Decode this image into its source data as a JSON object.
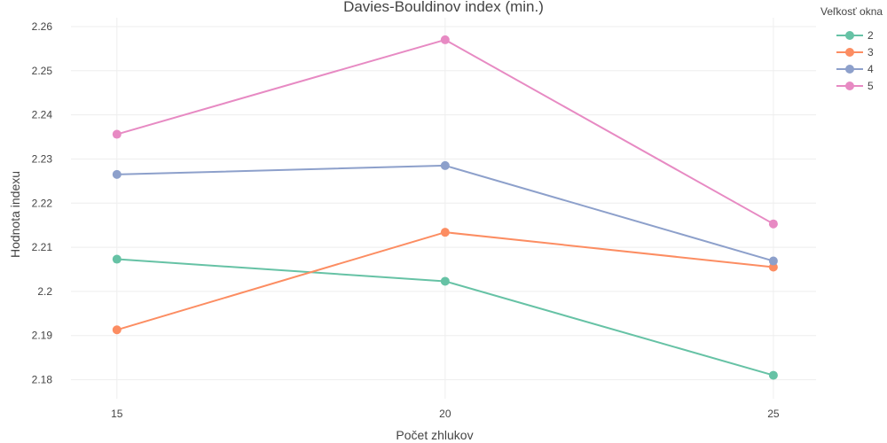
{
  "chart_data": {
    "type": "line",
    "title": "Davies-Bouldinov index (min.)",
    "xlabel": "Počet zhlukov",
    "ylabel": "Hodnota indexu",
    "x": [
      15,
      20,
      25
    ],
    "x_ticks": [
      "15",
      "20",
      "25"
    ],
    "xlim": [
      14.3,
      25.65
    ],
    "ylim": [
      2.1757,
      2.262
    ],
    "y_ticks": [
      2.18,
      2.19,
      2.2,
      2.21,
      2.22,
      2.23,
      2.24,
      2.25,
      2.26
    ],
    "y_tick_labels": [
      "2.18",
      "2.19",
      "2.2",
      "2.21",
      "2.22",
      "2.23",
      "2.24",
      "2.25",
      "2.26"
    ],
    "grid": true,
    "legend": {
      "title": "Veľkosť okna",
      "position": "top-right"
    },
    "series": [
      {
        "name": "2",
        "color": "#66c2a5",
        "values": [
          2.2073,
          2.2023,
          2.181
        ]
      },
      {
        "name": "3",
        "color": "#fc8d62",
        "values": [
          2.1913,
          2.2134,
          2.2055
        ]
      },
      {
        "name": "4",
        "color": "#8da0cb",
        "values": [
          2.2265,
          2.2285,
          2.2069
        ]
      },
      {
        "name": "5",
        "color": "#e78ac3",
        "values": [
          2.2356,
          2.257,
          2.2153
        ]
      }
    ]
  }
}
